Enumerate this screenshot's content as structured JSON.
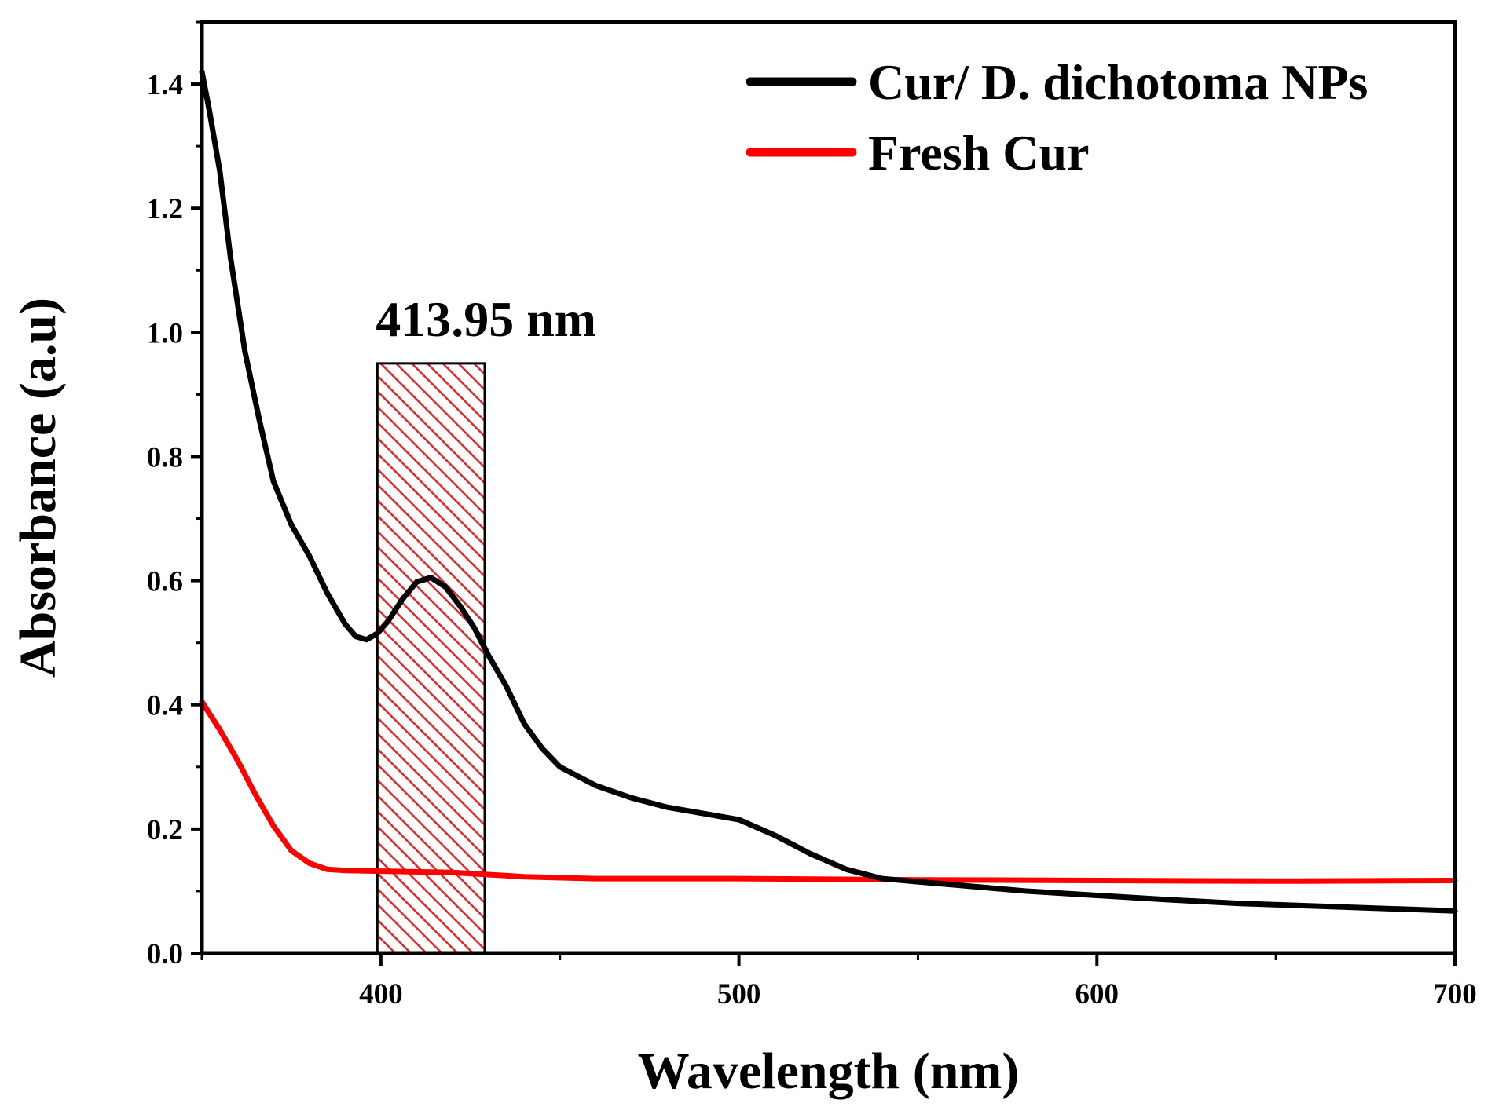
{
  "chart_data": {
    "type": "line",
    "title": "",
    "xlabel": "Wavelength (nm)",
    "ylabel": "Absorbance (a.u)",
    "xlim": [
      350,
      700
    ],
    "ylim": [
      0.0,
      1.5
    ],
    "x_ticks": [
      400,
      500,
      600,
      700
    ],
    "x_tick_labels": [
      "400",
      "500",
      "600",
      "700"
    ],
    "y_ticks": [
      0.0,
      0.2,
      0.4,
      0.6,
      0.8,
      1.0,
      1.2,
      1.4
    ],
    "y_tick_labels": [
      "0.0",
      "0.2",
      "0.4",
      "0.6",
      "0.8",
      "1.0",
      "1.2",
      "1.4"
    ],
    "grid": false,
    "legend_position": "top-right",
    "series": [
      {
        "name": "Cur/ D. dichotoma NPs",
        "color": "#000000",
        "x": [
          350,
          352,
          355,
          358,
          362,
          366,
          370,
          375,
          380,
          385,
          390,
          393,
          396,
          399,
          402,
          406,
          410,
          413.95,
          418,
          422,
          426,
          430,
          435,
          440,
          445,
          450,
          460,
          470,
          480,
          490,
          500,
          510,
          520,
          530,
          540,
          550,
          560,
          580,
          600,
          620,
          640,
          660,
          680,
          700
        ],
        "y": [
          1.42,
          1.36,
          1.26,
          1.12,
          0.97,
          0.86,
          0.76,
          0.69,
          0.64,
          0.58,
          0.53,
          0.51,
          0.505,
          0.515,
          0.535,
          0.57,
          0.598,
          0.605,
          0.59,
          0.56,
          0.525,
          0.48,
          0.43,
          0.37,
          0.33,
          0.3,
          0.27,
          0.25,
          0.235,
          0.225,
          0.215,
          0.19,
          0.16,
          0.135,
          0.12,
          0.115,
          0.11,
          0.1,
          0.093,
          0.086,
          0.08,
          0.076,
          0.072,
          0.068
        ]
      },
      {
        "name": "Fresh Cur",
        "color": "#ff0000",
        "x": [
          350,
          355,
          360,
          365,
          370,
          375,
          380,
          385,
          390,
          400,
          420,
          440,
          460,
          500,
          550,
          600,
          650,
          700
        ],
        "y": [
          0.405,
          0.36,
          0.31,
          0.255,
          0.205,
          0.165,
          0.145,
          0.135,
          0.133,
          0.132,
          0.13,
          0.123,
          0.12,
          0.12,
          0.118,
          0.117,
          0.116,
          0.117
        ]
      }
    ],
    "annotations": [
      {
        "text": "413.95 nm",
        "type": "hatched-band",
        "x_range": [
          399,
          429
        ],
        "y_range": [
          0.0,
          0.95
        ],
        "color": "#e0282a"
      }
    ]
  }
}
